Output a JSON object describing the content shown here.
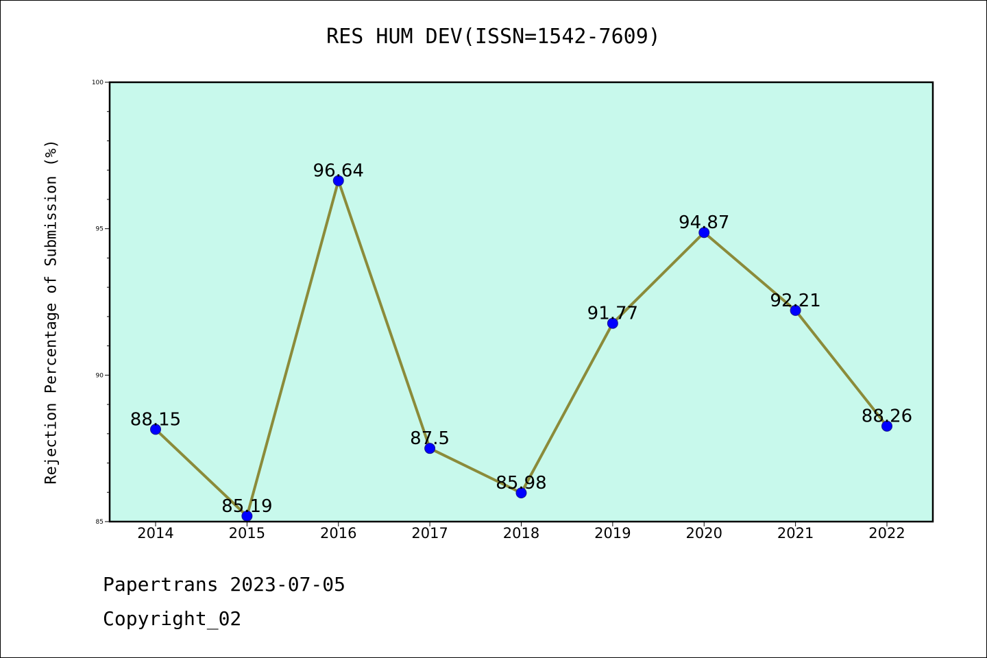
{
  "chart_data": {
    "type": "line",
    "title": "RES HUM DEV(ISSN=1542-7609)",
    "xlabel": "",
    "ylabel": "Rejection Percentage of Submission (%)",
    "categories": [
      "2014",
      "2015",
      "2016",
      "2017",
      "2018",
      "2019",
      "2020",
      "2021",
      "2022"
    ],
    "values": [
      88.15,
      85.19,
      96.64,
      87.5,
      85.98,
      91.77,
      94.87,
      92.21,
      88.26
    ],
    "data_labels": [
      "88.15",
      "85.19",
      "96.64",
      "87.5",
      "85.98",
      "91.77",
      "94.87",
      "92.21",
      "88.26"
    ],
    "ylim": [
      85,
      100
    ],
    "yticks": [
      85,
      90,
      95,
      100
    ],
    "grid": false,
    "colors": {
      "plot_background": "#c8f9ec",
      "line": "#8b8b3a",
      "marker": "#0000ff"
    }
  },
  "footer": {
    "line1": "Papertrans 2023-07-05",
    "line2": "Copyright_02"
  }
}
